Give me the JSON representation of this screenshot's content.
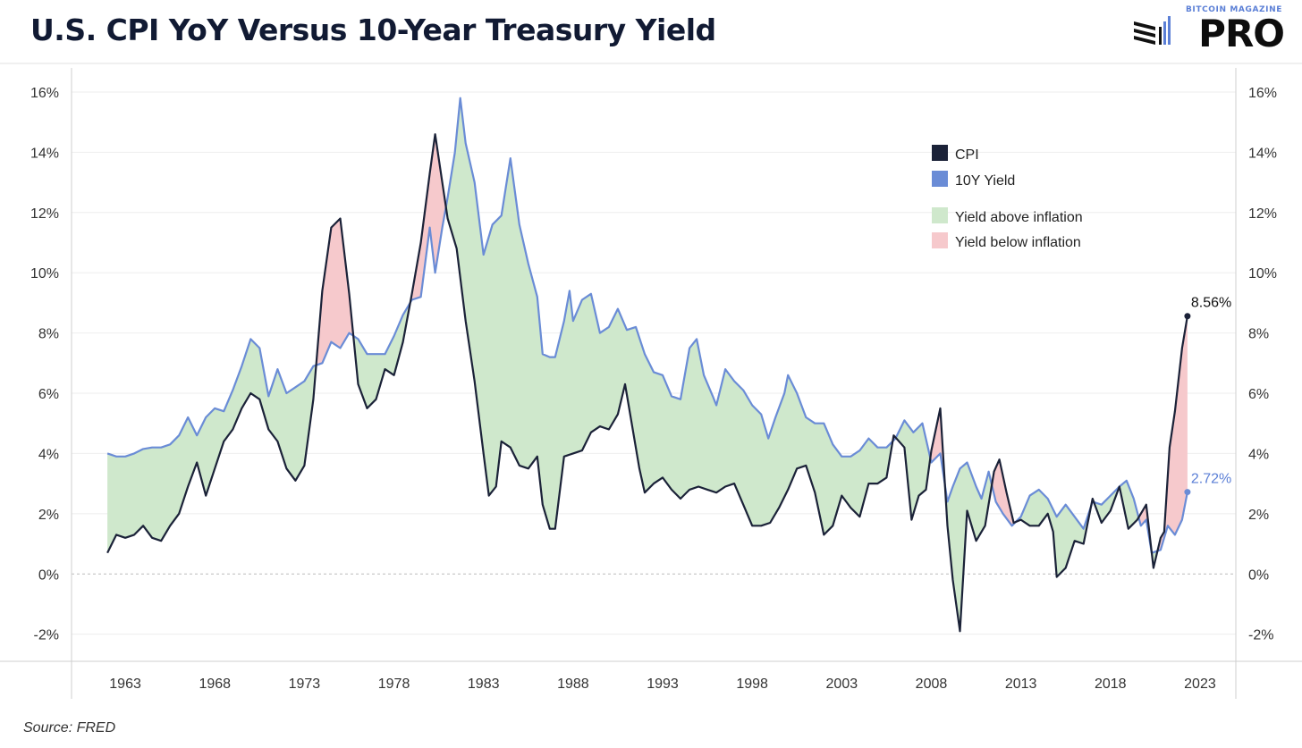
{
  "title": "U.S. CPI YoY Versus 10-Year Treasury Yield",
  "logo": {
    "top_text": "BITCOIN MAGAZINE",
    "main_text": "PRO"
  },
  "source": "Source: FRED",
  "legend": [
    {
      "label": "CPI",
      "color": "#1b2238",
      "type": "line"
    },
    {
      "label": "10Y Yield",
      "color": "#6a8cd6",
      "type": "line"
    },
    {
      "label": "Yield above inflation",
      "color": "#cfe8cc",
      "type": "fill"
    },
    {
      "label": "Yield below inflation",
      "color": "#f6c9cc",
      "type": "fill"
    }
  ],
  "annotations": {
    "cpi_last": "8.56%",
    "yield_last": "2.72%"
  },
  "chart_data": {
    "type": "line",
    "xlim": [
      1960,
      2025
    ],
    "ylim": [
      -2.9,
      16.8
    ],
    "x_ticks": [
      1963,
      1968,
      1973,
      1978,
      1983,
      1988,
      1993,
      1998,
      2003,
      2008,
      2013,
      2018,
      2023
    ],
    "y_ticks": [
      -2,
      0,
      2,
      4,
      6,
      8,
      10,
      12,
      14,
      16
    ],
    "y_tick_labels": [
      "-2%",
      "0%",
      "2%",
      "4%",
      "6%",
      "8%",
      "10%",
      "12%",
      "14%",
      "16%"
    ],
    "grid": true,
    "legend_position": "top-right",
    "colors": {
      "cpi": "#1b2238",
      "yield": "#6a8cd6",
      "above": "#cfe8cc",
      "below": "#f6c9cc"
    },
    "series": [
      {
        "name": "CPI",
        "points": [
          [
            1962.0,
            0.7
          ],
          [
            1962.5,
            1.3
          ],
          [
            1963.0,
            1.2
          ],
          [
            1963.5,
            1.3
          ],
          [
            1964.0,
            1.6
          ],
          [
            1964.5,
            1.2
          ],
          [
            1965.0,
            1.1
          ],
          [
            1965.5,
            1.6
          ],
          [
            1966.0,
            2.0
          ],
          [
            1966.5,
            2.9
          ],
          [
            1967.0,
            3.7
          ],
          [
            1967.5,
            2.6
          ],
          [
            1968.0,
            3.5
          ],
          [
            1968.5,
            4.4
          ],
          [
            1969.0,
            4.8
          ],
          [
            1969.5,
            5.5
          ],
          [
            1970.0,
            6.0
          ],
          [
            1970.5,
            5.8
          ],
          [
            1971.0,
            4.8
          ],
          [
            1971.5,
            4.4
          ],
          [
            1972.0,
            3.5
          ],
          [
            1972.5,
            3.1
          ],
          [
            1973.0,
            3.6
          ],
          [
            1973.5,
            5.8
          ],
          [
            1974.0,
            9.4
          ],
          [
            1974.5,
            11.5
          ],
          [
            1975.0,
            11.8
          ],
          [
            1975.5,
            9.3
          ],
          [
            1976.0,
            6.3
          ],
          [
            1976.5,
            5.5
          ],
          [
            1977.0,
            5.8
          ],
          [
            1977.5,
            6.8
          ],
          [
            1978.0,
            6.6
          ],
          [
            1978.5,
            7.7
          ],
          [
            1979.0,
            9.3
          ],
          [
            1979.5,
            11.0
          ],
          [
            1980.0,
            13.3
          ],
          [
            1980.3,
            14.6
          ],
          [
            1980.7,
            13.0
          ],
          [
            1981.0,
            11.8
          ],
          [
            1981.5,
            10.8
          ],
          [
            1982.0,
            8.4
          ],
          [
            1982.5,
            6.4
          ],
          [
            1983.0,
            4.0
          ],
          [
            1983.3,
            2.6
          ],
          [
            1983.7,
            2.9
          ],
          [
            1984.0,
            4.4
          ],
          [
            1984.5,
            4.2
          ],
          [
            1985.0,
            3.6
          ],
          [
            1985.5,
            3.5
          ],
          [
            1986.0,
            3.9
          ],
          [
            1986.3,
            2.3
          ],
          [
            1986.7,
            1.5
          ],
          [
            1987.0,
            1.5
          ],
          [
            1987.5,
            3.9
          ],
          [
            1988.0,
            4.0
          ],
          [
            1988.5,
            4.1
          ],
          [
            1989.0,
            4.7
          ],
          [
            1989.5,
            4.9
          ],
          [
            1990.0,
            4.8
          ],
          [
            1990.5,
            5.3
          ],
          [
            1990.9,
            6.3
          ],
          [
            1991.3,
            4.9
          ],
          [
            1991.7,
            3.5
          ],
          [
            1992.0,
            2.7
          ],
          [
            1992.5,
            3.0
          ],
          [
            1993.0,
            3.2
          ],
          [
            1993.5,
            2.8
          ],
          [
            1994.0,
            2.5
          ],
          [
            1994.5,
            2.8
          ],
          [
            1995.0,
            2.9
          ],
          [
            1995.5,
            2.8
          ],
          [
            1996.0,
            2.7
          ],
          [
            1996.5,
            2.9
          ],
          [
            1997.0,
            3.0
          ],
          [
            1997.5,
            2.3
          ],
          [
            1998.0,
            1.6
          ],
          [
            1998.5,
            1.6
          ],
          [
            1999.0,
            1.7
          ],
          [
            1999.5,
            2.2
          ],
          [
            2000.0,
            2.8
          ],
          [
            2000.5,
            3.5
          ],
          [
            2001.0,
            3.6
          ],
          [
            2001.5,
            2.7
          ],
          [
            2002.0,
            1.3
          ],
          [
            2002.5,
            1.6
          ],
          [
            2003.0,
            2.6
          ],
          [
            2003.5,
            2.2
          ],
          [
            2004.0,
            1.9
          ],
          [
            2004.5,
            3.0
          ],
          [
            2005.0,
            3.0
          ],
          [
            2005.5,
            3.2
          ],
          [
            2005.9,
            4.6
          ],
          [
            2006.5,
            4.2
          ],
          [
            2006.9,
            1.8
          ],
          [
            2007.3,
            2.6
          ],
          [
            2007.7,
            2.8
          ],
          [
            2008.0,
            4.1
          ],
          [
            2008.5,
            5.5
          ],
          [
            2008.9,
            1.6
          ],
          [
            2009.2,
            -0.2
          ],
          [
            2009.6,
            -1.9
          ],
          [
            2010.0,
            2.1
          ],
          [
            2010.5,
            1.1
          ],
          [
            2011.0,
            1.6
          ],
          [
            2011.5,
            3.4
          ],
          [
            2011.8,
            3.8
          ],
          [
            2012.2,
            2.7
          ],
          [
            2012.6,
            1.7
          ],
          [
            2013.0,
            1.8
          ],
          [
            2013.5,
            1.6
          ],
          [
            2014.0,
            1.6
          ],
          [
            2014.5,
            2.0
          ],
          [
            2014.8,
            1.4
          ],
          [
            2015.0,
            -0.1
          ],
          [
            2015.5,
            0.2
          ],
          [
            2016.0,
            1.1
          ],
          [
            2016.5,
            1.0
          ],
          [
            2017.0,
            2.5
          ],
          [
            2017.5,
            1.7
          ],
          [
            2018.0,
            2.1
          ],
          [
            2018.5,
            2.9
          ],
          [
            2019.0,
            1.5
          ],
          [
            2019.5,
            1.8
          ],
          [
            2020.0,
            2.3
          ],
          [
            2020.4,
            0.2
          ],
          [
            2020.8,
            1.2
          ],
          [
            2021.0,
            1.4
          ],
          [
            2021.3,
            4.2
          ],
          [
            2021.6,
            5.4
          ],
          [
            2022.0,
            7.5
          ],
          [
            2022.3,
            8.56
          ]
        ]
      },
      {
        "name": "10Y Yield",
        "points": [
          [
            1962.0,
            4.0
          ],
          [
            1962.5,
            3.9
          ],
          [
            1963.0,
            3.9
          ],
          [
            1963.5,
            4.0
          ],
          [
            1964.0,
            4.15
          ],
          [
            1964.5,
            4.2
          ],
          [
            1965.0,
            4.2
          ],
          [
            1965.5,
            4.3
          ],
          [
            1966.0,
            4.6
          ],
          [
            1966.5,
            5.2
          ],
          [
            1967.0,
            4.6
          ],
          [
            1967.5,
            5.2
          ],
          [
            1968.0,
            5.5
          ],
          [
            1968.5,
            5.4
          ],
          [
            1969.0,
            6.1
          ],
          [
            1969.5,
            6.9
          ],
          [
            1970.0,
            7.8
          ],
          [
            1970.5,
            7.5
          ],
          [
            1971.0,
            5.9
          ],
          [
            1971.5,
            6.8
          ],
          [
            1972.0,
            6.0
          ],
          [
            1972.5,
            6.2
          ],
          [
            1973.0,
            6.4
          ],
          [
            1973.5,
            6.9
          ],
          [
            1974.0,
            7.0
          ],
          [
            1974.5,
            7.7
          ],
          [
            1975.0,
            7.5
          ],
          [
            1975.5,
            8.0
          ],
          [
            1976.0,
            7.8
          ],
          [
            1976.5,
            7.3
          ],
          [
            1977.0,
            7.3
          ],
          [
            1977.5,
            7.3
          ],
          [
            1978.0,
            7.9
          ],
          [
            1978.5,
            8.6
          ],
          [
            1979.0,
            9.1
          ],
          [
            1979.5,
            9.2
          ],
          [
            1980.0,
            11.5
          ],
          [
            1980.3,
            10.0
          ],
          [
            1980.7,
            11.5
          ],
          [
            1981.0,
            12.5
          ],
          [
            1981.4,
            14.0
          ],
          [
            1981.7,
            15.8
          ],
          [
            1982.0,
            14.3
          ],
          [
            1982.5,
            13.0
          ],
          [
            1983.0,
            10.6
          ],
          [
            1983.5,
            11.6
          ],
          [
            1984.0,
            11.9
          ],
          [
            1984.5,
            13.8
          ],
          [
            1985.0,
            11.6
          ],
          [
            1985.5,
            10.3
          ],
          [
            1986.0,
            9.2
          ],
          [
            1986.3,
            7.3
          ],
          [
            1986.7,
            7.2
          ],
          [
            1987.0,
            7.2
          ],
          [
            1987.5,
            8.4
          ],
          [
            1987.8,
            9.4
          ],
          [
            1988.0,
            8.4
          ],
          [
            1988.5,
            9.1
          ],
          [
            1989.0,
            9.3
          ],
          [
            1989.5,
            8.0
          ],
          [
            1990.0,
            8.2
          ],
          [
            1990.5,
            8.8
          ],
          [
            1991.0,
            8.1
          ],
          [
            1991.5,
            8.2
          ],
          [
            1992.0,
            7.3
          ],
          [
            1992.5,
            6.7
          ],
          [
            1993.0,
            6.6
          ],
          [
            1993.5,
            5.9
          ],
          [
            1994.0,
            5.8
          ],
          [
            1994.5,
            7.5
          ],
          [
            1994.9,
            7.8
          ],
          [
            1995.3,
            6.6
          ],
          [
            1995.8,
            5.9
          ],
          [
            1996.0,
            5.6
          ],
          [
            1996.5,
            6.8
          ],
          [
            1997.0,
            6.4
          ],
          [
            1997.5,
            6.1
          ],
          [
            1998.0,
            5.6
          ],
          [
            1998.5,
            5.3
          ],
          [
            1998.9,
            4.5
          ],
          [
            1999.3,
            5.2
          ],
          [
            1999.8,
            6.0
          ],
          [
            2000.0,
            6.6
          ],
          [
            2000.5,
            6.0
          ],
          [
            2001.0,
            5.2
          ],
          [
            2001.5,
            5.0
          ],
          [
            2002.0,
            5.0
          ],
          [
            2002.5,
            4.3
          ],
          [
            2003.0,
            3.9
          ],
          [
            2003.5,
            3.9
          ],
          [
            2004.0,
            4.1
          ],
          [
            2004.5,
            4.5
          ],
          [
            2005.0,
            4.2
          ],
          [
            2005.5,
            4.2
          ],
          [
            2006.0,
            4.5
          ],
          [
            2006.5,
            5.1
          ],
          [
            2007.0,
            4.7
          ],
          [
            2007.5,
            5.0
          ],
          [
            2008.0,
            3.7
          ],
          [
            2008.5,
            4.0
          ],
          [
            2008.9,
            2.4
          ],
          [
            2009.2,
            2.9
          ],
          [
            2009.6,
            3.5
          ],
          [
            2010.0,
            3.7
          ],
          [
            2010.5,
            2.9
          ],
          [
            2010.8,
            2.5
          ],
          [
            2011.2,
            3.4
          ],
          [
            2011.6,
            2.4
          ],
          [
            2012.0,
            2.0
          ],
          [
            2012.5,
            1.6
          ],
          [
            2013.0,
            1.9
          ],
          [
            2013.5,
            2.6
          ],
          [
            2014.0,
            2.8
          ],
          [
            2014.5,
            2.5
          ],
          [
            2015.0,
            1.9
          ],
          [
            2015.5,
            2.3
          ],
          [
            2016.0,
            1.9
          ],
          [
            2016.5,
            1.5
          ],
          [
            2017.0,
            2.4
          ],
          [
            2017.5,
            2.3
          ],
          [
            2018.0,
            2.6
          ],
          [
            2018.5,
            2.9
          ],
          [
            2018.9,
            3.1
          ],
          [
            2019.3,
            2.5
          ],
          [
            2019.7,
            1.6
          ],
          [
            2020.0,
            1.8
          ],
          [
            2020.3,
            0.7
          ],
          [
            2020.8,
            0.8
          ],
          [
            2021.2,
            1.6
          ],
          [
            2021.6,
            1.3
          ],
          [
            2022.0,
            1.8
          ],
          [
            2022.3,
            2.72
          ]
        ]
      }
    ]
  }
}
